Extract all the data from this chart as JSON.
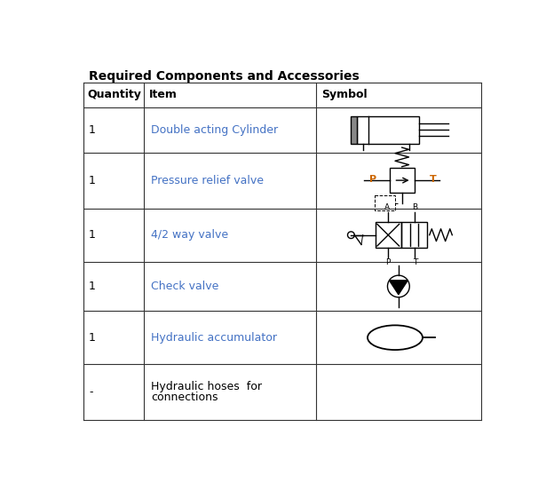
{
  "title": "Required Components and Accessories",
  "headers": [
    "Quantity",
    "Item",
    "Symbol"
  ],
  "rows": [
    [
      "1",
      "Double acting Cylinder",
      "cylinder"
    ],
    [
      "1",
      "Pressure relief valve",
      "relief_valve"
    ],
    [
      "1",
      "4/2 way valve",
      "way_valve"
    ],
    [
      "1",
      "Check valve",
      "check_valve"
    ],
    [
      "1",
      "Hydraulic accumulator",
      "accumulator"
    ],
    [
      "-",
      "Hydraulic hoses  for\nconnections",
      "none"
    ]
  ],
  "background_color": "#ffffff",
  "text_color": "#000000",
  "item_color": "#4472c4",
  "header_color": "#000000",
  "line_color": "#333333",
  "title_fontsize": 10,
  "header_fontsize": 9,
  "row_fontsize": 9
}
